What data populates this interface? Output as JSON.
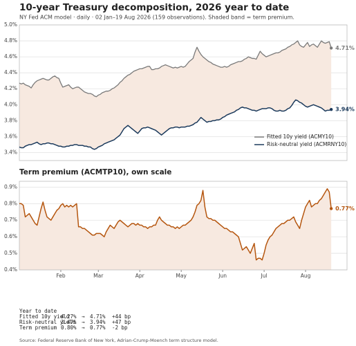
{
  "chart_data": [
    {
      "type": "line",
      "title": "10-year Treasury decomposition, 2026 year to date",
      "subtitle": "NY Fed ACM model · daily · 02 Jan–19 Aug 2026 (159 observations). Shaded band = term premium.",
      "x": [
        0,
        1,
        2,
        3,
        4,
        5,
        6,
        7,
        8,
        9,
        10,
        11,
        12,
        13,
        14,
        15,
        16,
        17,
        18,
        19,
        20,
        21,
        22,
        23,
        24,
        25,
        26,
        27,
        28,
        29,
        30,
        31,
        32,
        33,
        34,
        35,
        36,
        37,
        38,
        39,
        40,
        41,
        42,
        43,
        44,
        45,
        46,
        47,
        48,
        49,
        50,
        51,
        52,
        53,
        54,
        55,
        56,
        57,
        58,
        59,
        60,
        61,
        62,
        63,
        64,
        65,
        66,
        67,
        68,
        69,
        70,
        71,
        72,
        73,
        74,
        75,
        76,
        77,
        78,
        79,
        80,
        81,
        82,
        83,
        84,
        85,
        86,
        87,
        88,
        89,
        90,
        91,
        92,
        93,
        94,
        95,
        96,
        97,
        98,
        99,
        100,
        101,
        102,
        103,
        104,
        105,
        106,
        107,
        108,
        109,
        110,
        111,
        112,
        113,
        114,
        115,
        116,
        117,
        118,
        119,
        120,
        121,
        122,
        123,
        124,
        125,
        126,
        127,
        128,
        129,
        130,
        131,
        132,
        133,
        134,
        135,
        136,
        137,
        138,
        139,
        140,
        141,
        142,
        143,
        144,
        145,
        146,
        147,
        148,
        149,
        150,
        151,
        152,
        153,
        154,
        155,
        156,
        157,
        158
      ],
      "xlim": [
        0,
        166
      ],
      "ylim": [
        3.3,
        5.0
      ],
      "yticks": [
        {
          "value": 3.4,
          "label": "3.4%"
        },
        {
          "value": 3.6,
          "label": "3.6%"
        },
        {
          "value": 3.8,
          "label": "3.8%"
        },
        {
          "value": 4.0,
          "label": "4.0%"
        },
        {
          "value": 4.2,
          "label": "4.2%"
        },
        {
          "value": 4.4,
          "label": "4.4%"
        },
        {
          "value": 4.6,
          "label": "4.6%"
        },
        {
          "value": 4.8,
          "label": "4.8%"
        },
        {
          "value": 5.0,
          "label": "5.0%"
        }
      ],
      "grid": true,
      "legend": "lower right",
      "band": true,
      "band_color": "#f7e9e0",
      "series": [
        {
          "name": "Fitted 10y yield (ACMY10)",
          "color": "#7a7a7a",
          "end_label": "4.71%",
          "values": [
            4.27,
            4.26,
            4.27,
            4.25,
            4.24,
            4.23,
            4.21,
            4.25,
            4.28,
            4.3,
            4.31,
            4.32,
            4.33,
            4.32,
            4.31,
            4.31,
            4.33,
            4.35,
            4.36,
            4.34,
            4.33,
            4.27,
            4.22,
            4.23,
            4.24,
            4.25,
            4.22,
            4.2,
            4.21,
            4.22,
            4.22,
            4.2,
            4.18,
            4.16,
            4.15,
            4.14,
            4.14,
            4.13,
            4.11,
            4.1,
            4.12,
            4.13,
            4.15,
            4.16,
            4.17,
            4.17,
            4.18,
            4.2,
            4.21,
            4.23,
            4.25,
            4.28,
            4.3,
            4.33,
            4.35,
            4.37,
            4.38,
            4.4,
            4.42,
            4.43,
            4.44,
            4.45,
            4.45,
            4.46,
            4.47,
            4.48,
            4.48,
            4.44,
            4.44,
            4.45,
            4.45,
            4.46,
            4.48,
            4.49,
            4.5,
            4.49,
            4.48,
            4.47,
            4.46,
            4.47,
            4.46,
            4.47,
            4.48,
            4.47,
            4.48,
            4.51,
            4.54,
            4.56,
            4.58,
            4.66,
            4.72,
            4.67,
            4.63,
            4.6,
            4.58,
            4.56,
            4.54,
            4.53,
            4.51,
            4.5,
            4.49,
            4.48,
            4.47,
            4.47,
            4.48,
            4.47,
            4.48,
            4.5,
            4.51,
            4.52,
            4.53,
            4.54,
            4.54,
            4.55,
            4.57,
            4.58,
            4.6,
            4.59,
            4.58,
            4.58,
            4.57,
            4.62,
            4.67,
            4.64,
            4.62,
            4.6,
            4.61,
            4.62,
            4.63,
            4.64,
            4.65,
            4.65,
            4.66,
            4.68,
            4.69,
            4.7,
            4.72,
            4.73,
            4.75,
            4.76,
            4.78,
            4.8,
            4.75,
            4.73,
            4.72,
            4.75,
            4.78,
            4.73,
            4.75,
            4.76,
            4.74,
            4.72,
            4.76,
            4.8,
            4.78,
            4.77,
            4.78,
            4.79,
            4.71
          ]
        },
        {
          "name": "Risk-neutral yield (ACMRNY10)",
          "color": "#1b3a5c",
          "end_label": "3.94%",
          "values": [
            3.47,
            3.46,
            3.46,
            3.48,
            3.49,
            3.5,
            3.5,
            3.51,
            3.52,
            3.53,
            3.51,
            3.5,
            3.51,
            3.51,
            3.52,
            3.52,
            3.51,
            3.51,
            3.5,
            3.49,
            3.48,
            3.48,
            3.47,
            3.47,
            3.48,
            3.48,
            3.49,
            3.49,
            3.5,
            3.5,
            3.49,
            3.49,
            3.49,
            3.48,
            3.48,
            3.47,
            3.47,
            3.45,
            3.44,
            3.45,
            3.47,
            3.48,
            3.49,
            3.51,
            3.52,
            3.53,
            3.54,
            3.55,
            3.56,
            3.58,
            3.6,
            3.62,
            3.66,
            3.7,
            3.72,
            3.74,
            3.72,
            3.7,
            3.68,
            3.66,
            3.64,
            3.67,
            3.7,
            3.71,
            3.71,
            3.72,
            3.71,
            3.7,
            3.69,
            3.68,
            3.66,
            3.64,
            3.62,
            3.64,
            3.66,
            3.68,
            3.7,
            3.71,
            3.71,
            3.72,
            3.72,
            3.71,
            3.72,
            3.72,
            3.72,
            3.73,
            3.73,
            3.74,
            3.75,
            3.77,
            3.78,
            3.81,
            3.84,
            3.82,
            3.8,
            3.78,
            3.79,
            3.79,
            3.8,
            3.8,
            3.81,
            3.81,
            3.82,
            3.84,
            3.85,
            3.87,
            3.88,
            3.89,
            3.9,
            3.91,
            3.93,
            3.94,
            3.96,
            3.97,
            3.96,
            3.96,
            3.95,
            3.94,
            3.93,
            3.93,
            3.92,
            3.93,
            3.94,
            3.95,
            3.95,
            3.95,
            3.96,
            3.96,
            3.95,
            3.93,
            3.92,
            3.92,
            3.93,
            3.92,
            3.92,
            3.93,
            3.95,
            3.96,
            3.99,
            4.03,
            4.06,
            4.05,
            4.03,
            4.02,
            4.0,
            3.98,
            3.97,
            3.98,
            3.99,
            4.0,
            3.99,
            3.98,
            3.97,
            3.96,
            3.94,
            3.92,
            3.93,
            3.93,
            3.94
          ]
        }
      ]
    },
    {
      "type": "line",
      "title": "Term premium (ACMTP10), own scale",
      "x": [
        0,
        1,
        2,
        3,
        4,
        5,
        6,
        7,
        8,
        9,
        10,
        11,
        12,
        13,
        14,
        15,
        16,
        17,
        18,
        19,
        20,
        21,
        22,
        23,
        24,
        25,
        26,
        27,
        28,
        29,
        30,
        31,
        32,
        33,
        34,
        35,
        36,
        37,
        38,
        39,
        40,
        41,
        42,
        43,
        44,
        45,
        46,
        47,
        48,
        49,
        50,
        51,
        52,
        53,
        54,
        55,
        56,
        57,
        58,
        59,
        60,
        61,
        62,
        63,
        64,
        65,
        66,
        67,
        68,
        69,
        70,
        71,
        72,
        73,
        74,
        75,
        76,
        77,
        78,
        79,
        80,
        81,
        82,
        83,
        84,
        85,
        86,
        87,
        88,
        89,
        90,
        91,
        92,
        93,
        94,
        95,
        96,
        97,
        98,
        99,
        100,
        101,
        102,
        103,
        104,
        105,
        106,
        107,
        108,
        109,
        110,
        111,
        112,
        113,
        114,
        115,
        116,
        117,
        118,
        119,
        120,
        121,
        122,
        123,
        124,
        125,
        126,
        127,
        128,
        129,
        130,
        131,
        132,
        133,
        134,
        135,
        136,
        137,
        138,
        139,
        140,
        141,
        142,
        143,
        144,
        145,
        146,
        147,
        148,
        149,
        150,
        151,
        152,
        153,
        154,
        155,
        156,
        157,
        158
      ],
      "xlim": [
        0,
        166
      ],
      "xticks": [
        {
          "value": 21,
          "label": "Feb"
        },
        {
          "value": 40,
          "label": "Mar"
        },
        {
          "value": 61,
          "label": "Apr"
        },
        {
          "value": 82,
          "label": "May"
        },
        {
          "value": 103,
          "label": "Jun"
        },
        {
          "value": 124,
          "label": "Jul"
        },
        {
          "value": 145,
          "label": "Aug"
        }
      ],
      "ylim": [
        0.4,
        0.935
      ],
      "yticks": [
        {
          "value": 0.4,
          "label": "0.4%"
        },
        {
          "value": 0.5,
          "label": "0.5%"
        },
        {
          "value": 0.6,
          "label": "0.6%"
        },
        {
          "value": 0.7,
          "label": "0.7%"
        },
        {
          "value": 0.8,
          "label": "0.8%"
        },
        {
          "value": 0.9,
          "label": "0.9%"
        }
      ],
      "grid": true,
      "fill_below": true,
      "fill_color": "#f7e9e0",
      "color": "#b5560f",
      "end_label": "0.77%",
      "values": [
        0.8,
        0.8,
        0.79,
        0.72,
        0.73,
        0.74,
        0.72,
        0.7,
        0.68,
        0.67,
        0.72,
        0.77,
        0.81,
        0.76,
        0.72,
        0.71,
        0.7,
        0.72,
        0.74,
        0.76,
        0.77,
        0.79,
        0.8,
        0.78,
        0.79,
        0.78,
        0.79,
        0.78,
        0.79,
        0.8,
        0.66,
        0.66,
        0.65,
        0.65,
        0.64,
        0.63,
        0.62,
        0.61,
        0.61,
        0.62,
        0.62,
        0.62,
        0.61,
        0.6,
        0.63,
        0.65,
        0.67,
        0.66,
        0.65,
        0.67,
        0.69,
        0.7,
        0.69,
        0.68,
        0.67,
        0.66,
        0.67,
        0.68,
        0.68,
        0.67,
        0.68,
        0.67,
        0.67,
        0.66,
        0.66,
        0.65,
        0.66,
        0.66,
        0.67,
        0.67,
        0.7,
        0.72,
        0.7,
        0.69,
        0.68,
        0.67,
        0.67,
        0.66,
        0.66,
        0.65,
        0.66,
        0.65,
        0.66,
        0.67,
        0.67,
        0.68,
        0.69,
        0.7,
        0.72,
        0.75,
        0.79,
        0.8,
        0.82,
        0.88,
        0.78,
        0.72,
        0.71,
        0.71,
        0.7,
        0.7,
        0.69,
        0.68,
        0.67,
        0.66,
        0.65,
        0.65,
        0.64,
        0.63,
        0.63,
        0.62,
        0.61,
        0.6,
        0.56,
        0.52,
        0.53,
        0.54,
        0.52,
        0.5,
        0.53,
        0.56,
        0.46,
        0.47,
        0.47,
        0.46,
        0.5,
        0.55,
        0.58,
        0.6,
        0.61,
        0.63,
        0.65,
        0.66,
        0.67,
        0.68,
        0.68,
        0.69,
        0.7,
        0.7,
        0.71,
        0.72,
        0.69,
        0.67,
        0.65,
        0.7,
        0.74,
        0.78,
        0.8,
        0.82,
        0.78,
        0.79,
        0.8,
        0.8,
        0.82,
        0.83,
        0.85,
        0.87,
        0.89,
        0.87,
        0.77
      ]
    }
  ],
  "summary": {
    "title": "Year to date",
    "rows": [
      [
        "Fitted 10y yield",
        "4.27%",
        "→",
        "4.71%",
        "+44 bp"
      ],
      [
        "Risk-neutral yield",
        "3.47%",
        "→",
        "3.94%",
        "+47 bp"
      ],
      [
        "Term premium",
        "0.80%",
        "→",
        "0.77%",
        "-2 bp"
      ]
    ]
  },
  "source": "Source: Federal Reserve Bank of New York, Adrian-Crump-Moench term structure model."
}
